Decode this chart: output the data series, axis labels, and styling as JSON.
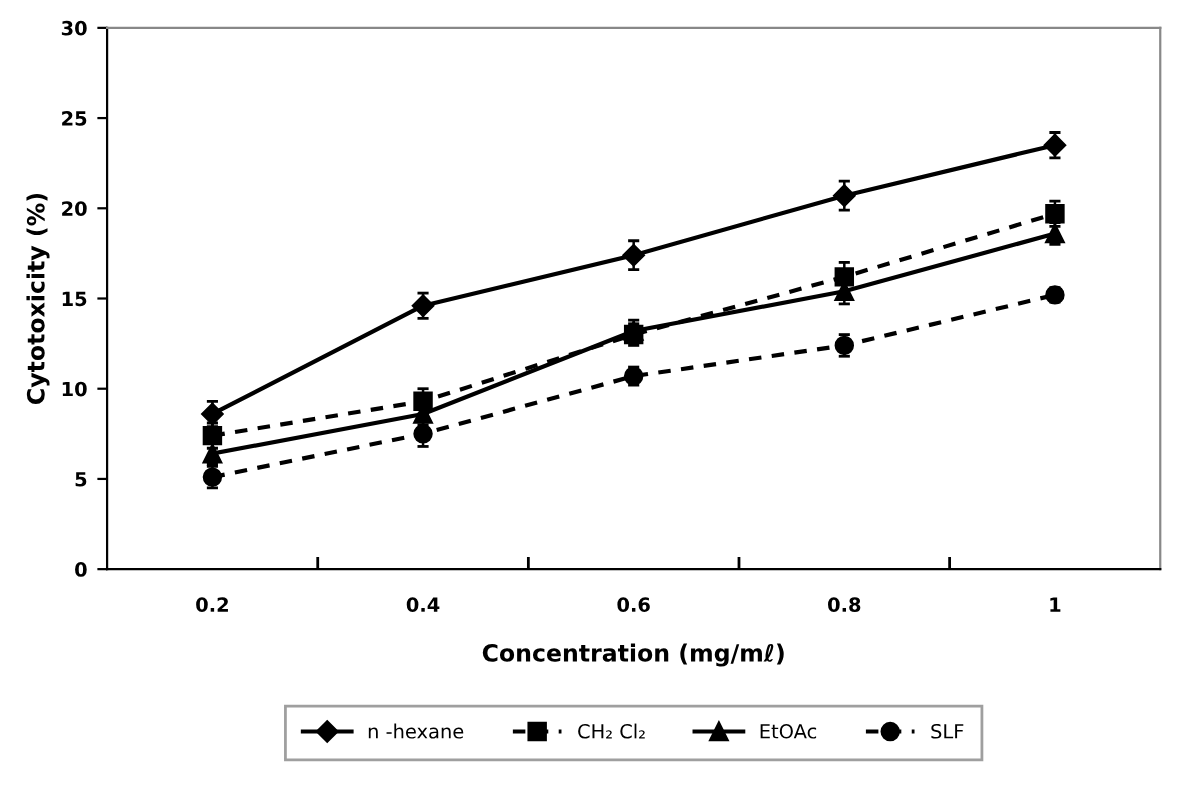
{
  "chart_data": {
    "type": "line",
    "xlabel": "Concentration (mg/mℓ)",
    "ylabel": "Cytotoxicity (%)",
    "categories": [
      "0.2",
      "0.4",
      "0.6",
      "0.8",
      "1"
    ],
    "ylim": [
      0,
      30
    ],
    "yticks": [
      0,
      5,
      10,
      15,
      20,
      25,
      30
    ],
    "grid": false,
    "legend": "bottom",
    "series": [
      {
        "name": "n -hexane",
        "color": "#000000",
        "marker": "diamond",
        "line_style": "solid",
        "values": [
          8.6,
          14.6,
          17.4,
          20.7,
          23.5
        ],
        "errors": [
          0.7,
          0.7,
          0.8,
          0.8,
          0.7
        ]
      },
      {
        "name": "CH₂ Cl₂",
        "color": "#000000",
        "marker": "square",
        "line_style": "dashed",
        "values": [
          7.4,
          9.3,
          13.0,
          16.2,
          19.7
        ],
        "errors": [
          0.7,
          0.7,
          0.6,
          0.8,
          0.7
        ]
      },
      {
        "name": "EtOAc",
        "color": "#000000",
        "marker": "triangle",
        "line_style": "solid",
        "values": [
          6.4,
          8.6,
          13.2,
          15.4,
          18.6
        ],
        "errors": [
          0.6,
          0.6,
          0.6,
          0.7,
          0.6
        ]
      },
      {
        "name": "SLF",
        "color": "#000000",
        "marker": "circle",
        "line_style": "dashed",
        "values": [
          5.1,
          7.5,
          10.7,
          12.4,
          15.2
        ],
        "errors": [
          0.6,
          0.7,
          0.5,
          0.6,
          0.4
        ]
      }
    ]
  }
}
